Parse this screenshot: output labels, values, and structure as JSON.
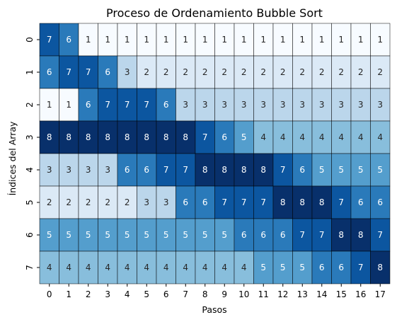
{
  "chart_data": {
    "type": "heatmap",
    "title": "Proceso de Ordenamiento Bubble Sort",
    "xlabel": "Pasos",
    "ylabel": "Índices del Array",
    "x_ticks": [
      "0",
      "1",
      "2",
      "3",
      "4",
      "5",
      "6",
      "7",
      "8",
      "9",
      "10",
      "11",
      "12",
      "13",
      "14",
      "15",
      "16",
      "17"
    ],
    "y_ticks": [
      "0",
      "1",
      "2",
      "3",
      "4",
      "5",
      "6",
      "7"
    ],
    "colormap": "Blues",
    "value_range": [
      1,
      8
    ],
    "annotate": true,
    "grid_lines": true,
    "values": [
      [
        7,
        6,
        1,
        1,
        1,
        1,
        1,
        1,
        1,
        1,
        1,
        1,
        1,
        1,
        1,
        1,
        1,
        1
      ],
      [
        6,
        7,
        7,
        6,
        3,
        2,
        2,
        2,
        2,
        2,
        2,
        2,
        2,
        2,
        2,
        2,
        2,
        2
      ],
      [
        1,
        1,
        6,
        7,
        7,
        7,
        6,
        3,
        3,
        3,
        3,
        3,
        3,
        3,
        3,
        3,
        3,
        3
      ],
      [
        8,
        8,
        8,
        8,
        8,
        8,
        8,
        8,
        7,
        6,
        5,
        4,
        4,
        4,
        4,
        4,
        4,
        4
      ],
      [
        3,
        3,
        3,
        3,
        6,
        6,
        7,
        7,
        8,
        8,
        8,
        8,
        7,
        6,
        5,
        5,
        5,
        5
      ],
      [
        2,
        2,
        2,
        2,
        2,
        3,
        3,
        6,
        6,
        7,
        7,
        7,
        8,
        8,
        8,
        7,
        6,
        6
      ],
      [
        5,
        5,
        5,
        5,
        5,
        5,
        5,
        5,
        5,
        5,
        6,
        6,
        6,
        7,
        7,
        8,
        8,
        7
      ],
      [
        4,
        4,
        4,
        4,
        4,
        4,
        4,
        4,
        4,
        4,
        4,
        5,
        5,
        5,
        6,
        6,
        7,
        8
      ]
    ]
  }
}
